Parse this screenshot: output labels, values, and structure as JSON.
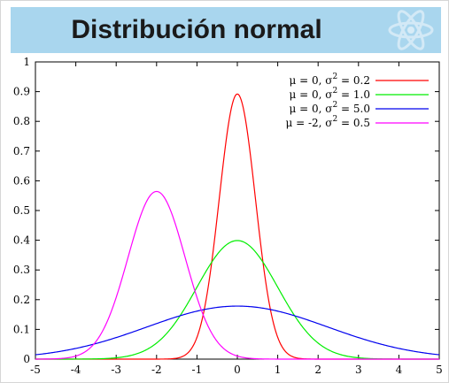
{
  "header": {
    "title": "Distribución normal",
    "logo_icon": "atom-icon"
  },
  "chart_data": {
    "type": "line",
    "title": "",
    "xlabel": "",
    "ylabel": "",
    "xlim": [
      -5,
      5
    ],
    "ylim": [
      0,
      1
    ],
    "xticks": [
      "-5",
      "-4",
      "-3",
      "-2",
      "-1",
      "0",
      "1",
      "2",
      "3",
      "4",
      "5"
    ],
    "yticks": [
      "0",
      "0.1",
      "0.2",
      "0.3",
      "0.4",
      "0.5",
      "0.6",
      "0.7",
      "0.8",
      "0.9",
      "1"
    ],
    "grid": false,
    "legend_position": "top-right",
    "series": [
      {
        "name": "μ = 0, σ² = 0.2",
        "label_prefix": "μ =  0, σ",
        "label_suffix": " = 0.2",
        "mu": 0,
        "variance": 0.2,
        "color": "#ff0000",
        "x": [
          -2,
          -1.5,
          -1,
          -0.5,
          0,
          0.5,
          1,
          1.5,
          2
        ],
        "y": [
          0,
          0.004,
          0.073,
          0.478,
          0.892,
          0.478,
          0.073,
          0.004,
          0
        ]
      },
      {
        "name": "μ = 0, σ² = 1.0",
        "label_prefix": "μ =  0, σ",
        "label_suffix": " = 1.0",
        "mu": 0,
        "variance": 1.0,
        "color": "#00ee00",
        "x": [
          -4,
          -3,
          -2,
          -1,
          0,
          1,
          2,
          3,
          4
        ],
        "y": [
          0,
          0.004,
          0.054,
          0.242,
          0.399,
          0.242,
          0.054,
          0.004,
          0
        ]
      },
      {
        "name": "μ = 0, σ² = 5.0",
        "label_prefix": "μ =  0, σ",
        "label_suffix": " = 5.0",
        "mu": 0,
        "variance": 5.0,
        "color": "#0000ee",
        "x": [
          -5,
          -4,
          -3,
          -2,
          -1,
          0,
          1,
          2,
          3,
          4,
          5
        ],
        "y": [
          0.015,
          0.036,
          0.073,
          0.119,
          0.161,
          0.178,
          0.161,
          0.119,
          0.073,
          0.036,
          0.015
        ]
      },
      {
        "name": "μ = -2, σ² = 0.5",
        "label_prefix": "μ = -2, σ",
        "label_suffix": " = 0.5",
        "mu": -2,
        "variance": 0.5,
        "color": "#ff00ff",
        "x": [
          -4,
          -3.5,
          -3,
          -2.5,
          -2,
          -1.5,
          -1,
          -0.5,
          0
        ],
        "y": [
          0.01,
          0.059,
          0.208,
          0.439,
          0.564,
          0.439,
          0.208,
          0.059,
          0.01
        ]
      }
    ]
  }
}
